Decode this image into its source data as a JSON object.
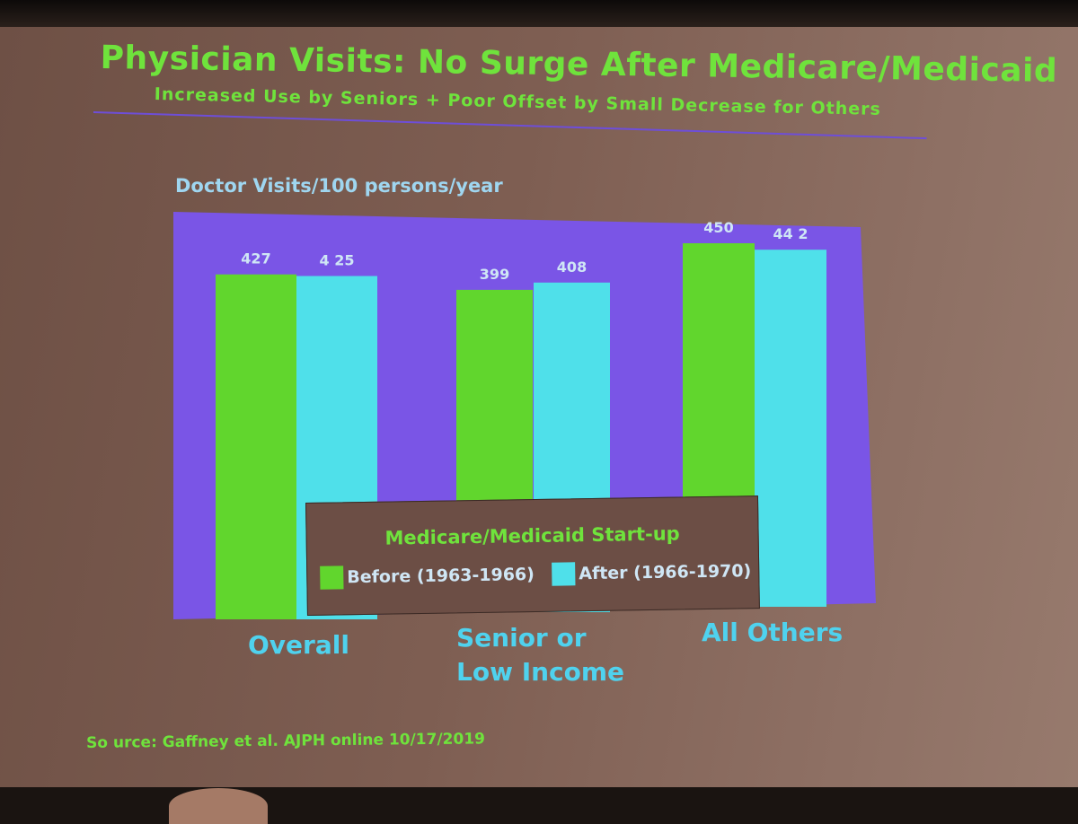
{
  "slide": {
    "title": "Physician Visits: No Surge After Medicare/Medicaid",
    "subtitle": "Increased Use by Seniors + Poor Offset by Small Decrease for Others",
    "source": "So urce: Gaffney et al. AJPH online 10/17/2019"
  },
  "colors": {
    "before": "#61d62d",
    "after": "#4fe0ea",
    "plot_background": "#7a55e6",
    "text_green": "#6fe33c",
    "text_cyan": "#4fd2ee",
    "label_light": "#cfe6f5"
  },
  "chart_data": {
    "type": "bar",
    "title": "Physician Visits: No Surge After Medicare/Medicaid",
    "subtitle": "Increased Use by Seniors + Poor Offset by Small Decrease for Others",
    "ylabel": "Doctor Visits/100 persons/year",
    "xlabel": "",
    "categories": [
      "Overall",
      "Senior or Low Income",
      "All Others"
    ],
    "series": [
      {
        "name": "Before (1963-1966)",
        "values": [
          427,
          399,
          450
        ],
        "color": "#61d62d"
      },
      {
        "name": "After (1966-1970)",
        "values": [
          425,
          408,
          442
        ],
        "color": "#4fe0ea"
      }
    ],
    "data_labels": [
      [
        "427",
        "399",
        "450"
      ],
      [
        "4 25",
        "408",
        "44 2"
      ]
    ],
    "ylim": [
      0,
      500
    ],
    "grid": false,
    "legend": {
      "title": "Medicare/Medicaid Start-up",
      "position": "bottom-center"
    }
  }
}
